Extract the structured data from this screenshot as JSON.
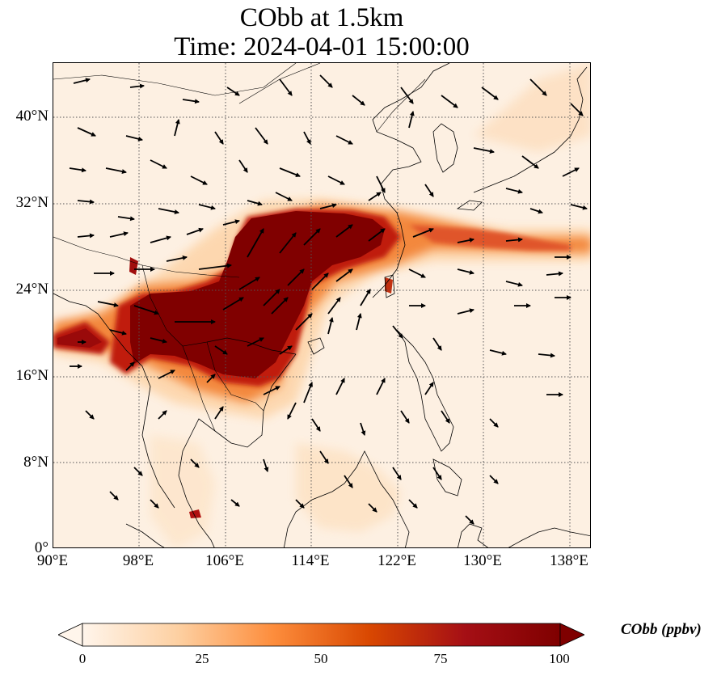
{
  "title_line1": "CObb at 1.5km",
  "title_line2": "Time: 2024-04-01 15:00:00",
  "lat_ticks": [
    "40°N",
    "32°N",
    "24°N",
    "16°N",
    "8°N",
    "0°"
  ],
  "lon_ticks": [
    "90°E",
    "98°E",
    "106°E",
    "114°E",
    "122°E",
    "130°E",
    "138°E"
  ],
  "colorbar": {
    "label": "CObb (ppbv)",
    "ticks": [
      "0",
      "25",
      "50",
      "75",
      "100"
    ],
    "min": 0,
    "max": 100,
    "extend": "both",
    "colors": [
      "#fff5eb",
      "#fdd0a2",
      "#fd8d3c",
      "#d94801",
      "#a50f15",
      "#7f0000"
    ]
  },
  "map": {
    "extent_lon": [
      90,
      140
    ],
    "extent_lat": [
      0,
      45
    ],
    "gridlines": "dotted",
    "features": [
      "coastlines",
      "country borders",
      "wind vectors"
    ]
  }
}
